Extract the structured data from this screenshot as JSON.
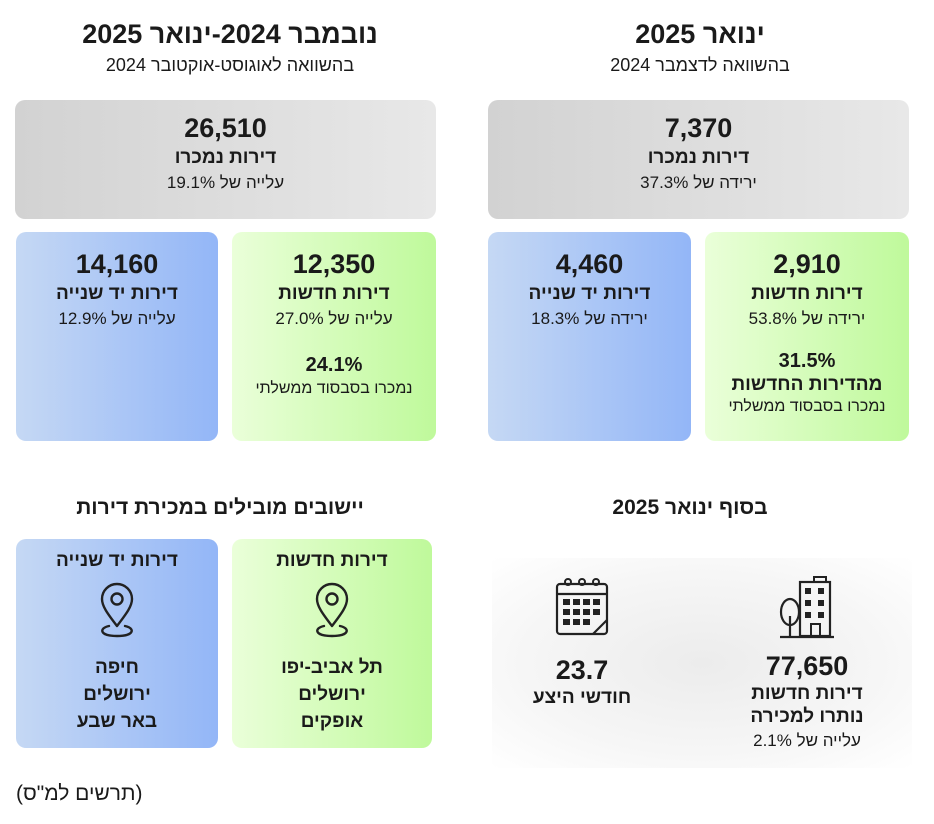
{
  "left_header": {
    "title": "נובמבר 2024-ינואר 2025",
    "subtitle": "בהשוואה לאוגוסט-אוקטובר 2024"
  },
  "right_header": {
    "title": "ינואר 2025",
    "subtitle": "בהשוואה לדצמבר 2024"
  },
  "left_total": {
    "value": "26,510",
    "label": "דירות נמכרו",
    "change": "עלייה של 19.1%"
  },
  "right_total": {
    "value": "7,370",
    "label": "דירות נמכרו",
    "change": "ירידה של 37.3%"
  },
  "left_new": {
    "value": "12,350",
    "label": "דירות חדשות",
    "change": "עלייה של 27.0%",
    "subsidy_pct": "24.1%",
    "subsidy_text": "נמכרו בסבסוד ממשלתי"
  },
  "left_second": {
    "value": "14,160",
    "label": "דירות יד שנייה",
    "change": "עלייה של 12.9%"
  },
  "right_new": {
    "value": "2,910",
    "label": "דירות חדשות",
    "change": "ירידה של 53.8%",
    "subsidy_pct": "31.5%",
    "subsidy_label": "מהדירות החדשות",
    "subsidy_text": "נמכרו בסבסוד ממשלתי"
  },
  "right_second": {
    "value": "4,460",
    "label": "דירות יד שנייה",
    "change": "ירידה של 18.3%"
  },
  "leading_section": {
    "title": "יישובים מובילים במכירת דירות",
    "new": {
      "title": "דירות חדשות",
      "cities": [
        "תל אביב-יפו",
        "ירושלים",
        "אופקים"
      ]
    },
    "second": {
      "title": "דירות יד שנייה",
      "cities": [
        "חיפה",
        "ירושלים",
        "באר שבע"
      ]
    }
  },
  "end_section": {
    "title": "בסוף ינואר 2025",
    "inventory": {
      "value": "77,650",
      "label1": "דירות חדשות",
      "label2": "נותרו למכירה",
      "change": "עלייה של 2.1%"
    },
    "months": {
      "value": "23.7",
      "label": "חודשי היצע"
    }
  },
  "footer": "(תרשים למ\"ס)",
  "colors": {
    "gray_card": "#dcdcdc",
    "green_card": "#c8fba7",
    "blue_card": "#9fbdf5"
  }
}
